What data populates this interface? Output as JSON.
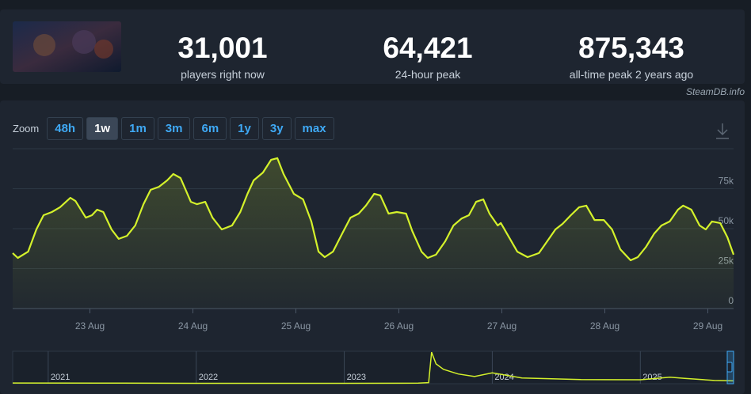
{
  "header": {
    "stats": [
      {
        "value": "31,001",
        "label": "players right now"
      },
      {
        "value": "64,421",
        "label": "24-hour peak"
      },
      {
        "value": "875,343",
        "label": "all-time peak 2 years ago"
      }
    ]
  },
  "source": "SteamDB.info",
  "zoom": {
    "label": "Zoom",
    "options": [
      "48h",
      "1w",
      "1m",
      "3m",
      "6m",
      "1y",
      "3y",
      "max"
    ],
    "active_index": 1
  },
  "chart_data": [
    {
      "type": "area",
      "color": "#d4f12b",
      "grid": true,
      "x": [
        22.25,
        22.3,
        22.4,
        22.48,
        22.55,
        22.63,
        22.71,
        22.81,
        22.86,
        22.96,
        23.02,
        23.07,
        23.13,
        23.21,
        23.28,
        23.36,
        23.44,
        23.52,
        23.59,
        23.67,
        23.75,
        23.81,
        23.88,
        23.98,
        24.04,
        24.12,
        24.19,
        24.28,
        24.38,
        24.46,
        24.53,
        24.59,
        24.68,
        24.76,
        24.82,
        24.88,
        24.98,
        25.07,
        25.15,
        25.22,
        25.28,
        25.36,
        25.45,
        25.53,
        25.61,
        25.68,
        25.76,
        25.82,
        25.9,
        25.98,
        26.07,
        26.13,
        26.22,
        26.28,
        26.36,
        26.45,
        26.53,
        26.61,
        26.68,
        26.75,
        26.82,
        26.88,
        26.96,
        26.99,
        27.07,
        27.15,
        27.25,
        27.36,
        27.44,
        27.52,
        27.59,
        27.67,
        27.75,
        27.82,
        27.9,
        27.99,
        28.07,
        28.15,
        28.25,
        28.32,
        28.4,
        28.48,
        28.55,
        28.63,
        28.71,
        28.76,
        28.84,
        28.92,
        28.98,
        29.04,
        29.12,
        29.19,
        29.25
      ],
      "values": [
        34700,
        31700,
        35600,
        49500,
        58400,
        60400,
        63400,
        69300,
        67300,
        56900,
        58400,
        61900,
        60400,
        49500,
        43600,
        45500,
        52000,
        65300,
        74300,
        76200,
        80200,
        84200,
        81700,
        66800,
        65300,
        66800,
        56900,
        49500,
        52000,
        60400,
        71800,
        80200,
        85100,
        93100,
        94100,
        84200,
        71800,
        68300,
        54500,
        35600,
        32200,
        35600,
        47000,
        56900,
        59400,
        64400,
        71800,
        70800,
        59400,
        60400,
        59400,
        48500,
        35600,
        31700,
        33700,
        42100,
        52000,
        56400,
        58400,
        66800,
        68300,
        59400,
        52000,
        53500,
        44600,
        35600,
        32200,
        34700,
        42100,
        49500,
        53000,
        58400,
        63400,
        64400,
        55400,
        55400,
        49500,
        37100,
        30200,
        32200,
        38600,
        47000,
        52000,
        54500,
        61900,
        64400,
        61900,
        52000,
        49500,
        54500,
        53500,
        44600,
        33700
      ],
      "xlim": [
        22.25,
        29.25
      ],
      "xticks": [
        {
          "value": 23,
          "label": "23 Aug"
        },
        {
          "value": 24,
          "label": "24 Aug"
        },
        {
          "value": 25,
          "label": "25 Aug"
        },
        {
          "value": 26,
          "label": "26 Aug"
        },
        {
          "value": 27,
          "label": "27 Aug"
        },
        {
          "value": 28,
          "label": "28 Aug"
        },
        {
          "value": 29,
          "label": "29 Aug"
        }
      ],
      "ylim": [
        0,
        100000
      ],
      "yticks": [
        0,
        {
          "value": 25000,
          "label": "25k"
        },
        {
          "value": 50000,
          "label": "50k"
        },
        {
          "value": 75000,
          "label": "75k"
        }
      ]
    },
    {
      "type": "line",
      "color": "#d4f12b",
      "x": [
        2020.76,
        2021.5,
        2022.0,
        2022.5,
        2023.0,
        2023.5,
        2023.57,
        2023.59,
        2023.62,
        2023.67,
        2023.77,
        2023.88,
        2024.0,
        2024.2,
        2024.6,
        2025.0,
        2025.2,
        2025.3,
        2025.5,
        2025.63
      ],
      "values": [
        20000,
        15000,
        12000,
        10000,
        12000,
        15000,
        30000,
        875343,
        550000,
        400000,
        270000,
        200000,
        300000,
        160000,
        115000,
        110000,
        180000,
        150000,
        90000,
        80000
      ],
      "xlim": [
        2020.76,
        2025.63
      ],
      "xticks": [
        2021,
        2022,
        2023,
        2024,
        2025
      ],
      "ylim": [
        0,
        900000
      ]
    }
  ]
}
